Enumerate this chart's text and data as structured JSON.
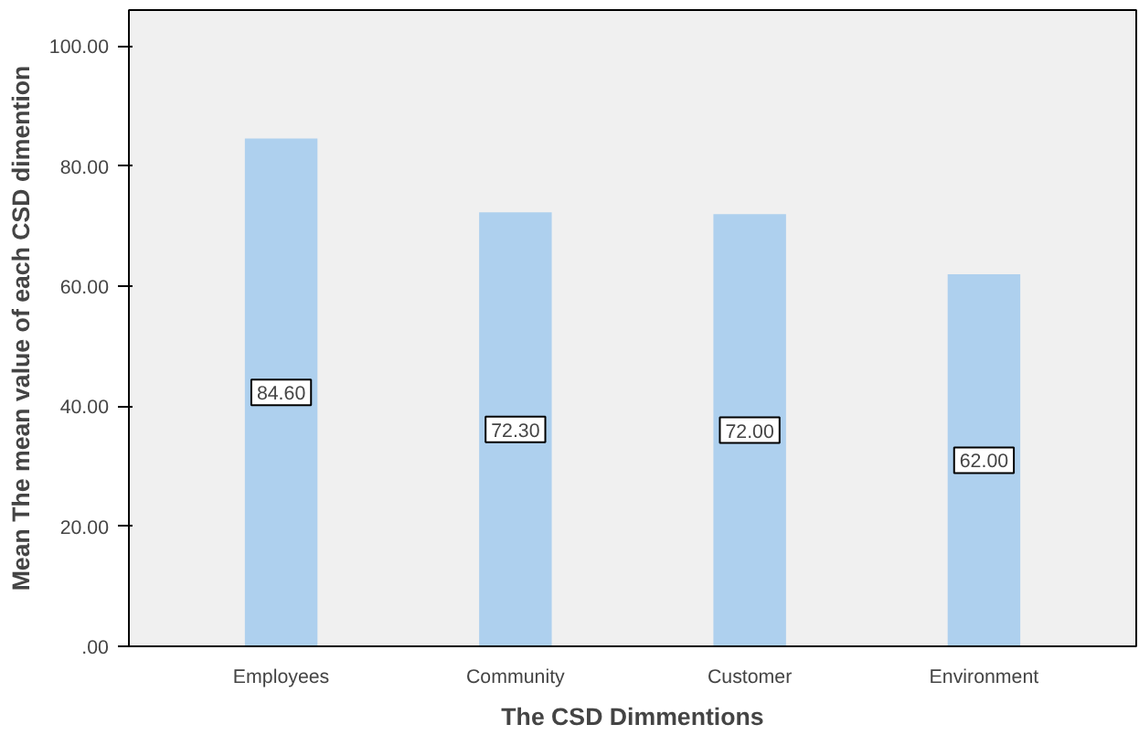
{
  "chart_data": {
    "type": "bar",
    "xlabel": "The CSD Dimmentions",
    "ylabel": "Mean The mean value of each CSD dimention",
    "categories": [
      "Employees",
      "Community",
      "Customer",
      "Environment"
    ],
    "values": [
      84.6,
      72.3,
      72.0,
      62.0
    ],
    "value_labels": [
      "84.60",
      "72.30",
      "72.00",
      "62.00"
    ],
    "color": "#aed0ee",
    "ylim": [
      0,
      106
    ],
    "yticks": [
      {
        "value": 0,
        "label": ".00"
      },
      {
        "value": 20,
        "label": "20.00"
      },
      {
        "value": 40,
        "label": "40.00"
      },
      {
        "value": 60,
        "label": "60.00"
      },
      {
        "value": 80,
        "label": "80.00"
      },
      {
        "value": 100,
        "label": "100.00"
      }
    ]
  }
}
